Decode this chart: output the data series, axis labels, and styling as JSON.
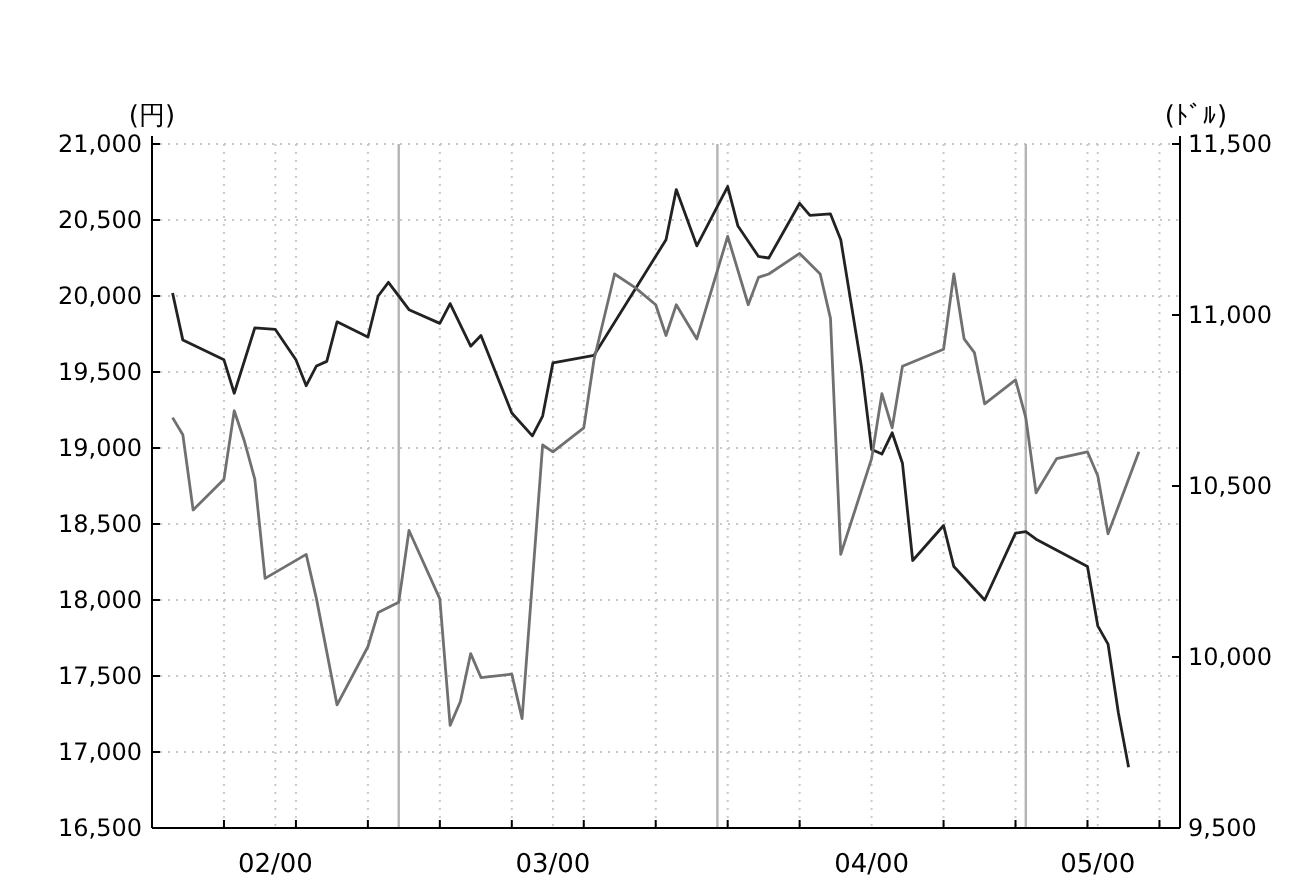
{
  "chart_data": {
    "type": "line",
    "ylabel": "(円)",
    "y2label": "(ﾄﾞﾙ)",
    "xlim": [
      "2000-02-06",
      "2000-05-16"
    ],
    "xticks": [
      {
        "value": "2000-02-13",
        "label": null
      },
      {
        "value": "2000-02-18",
        "label": "02/00"
      },
      {
        "value": "2000-02-20",
        "label": null
      },
      {
        "value": "2000-02-27",
        "label": null
      },
      {
        "value": "2000-03-05",
        "label": null
      },
      {
        "value": "2000-03-12",
        "label": null
      },
      {
        "value": "2000-03-16",
        "label": "03/00"
      },
      {
        "value": "2000-03-19",
        "label": null
      },
      {
        "value": "2000-03-26",
        "label": null
      },
      {
        "value": "2000-04-02",
        "label": null
      },
      {
        "value": "2000-04-09",
        "label": null
      },
      {
        "value": "2000-04-16",
        "label": "04/00"
      },
      {
        "value": "2000-04-23",
        "label": null
      },
      {
        "value": "2000-04-30",
        "label": null
      },
      {
        "value": "2000-05-07",
        "label": null
      },
      {
        "value": "2000-05-08",
        "label": "05/00"
      },
      {
        "value": "2000-05-14",
        "label": null
      }
    ],
    "ylim": [
      16500,
      21000
    ],
    "yticks": [
      {
        "value": 16500,
        "label": "16,500"
      },
      {
        "value": 17000,
        "label": "17,000"
      },
      {
        "value": 17500,
        "label": "17,500"
      },
      {
        "value": 18000,
        "label": "18,000"
      },
      {
        "value": 18500,
        "label": "18,500"
      },
      {
        "value": 19000,
        "label": "19,000"
      },
      {
        "value": 19500,
        "label": "19,500"
      },
      {
        "value": 20000,
        "label": "20,000"
      },
      {
        "value": 20500,
        "label": "20,500"
      },
      {
        "value": 21000,
        "label": "21,000"
      }
    ],
    "y2lim": [
      9500,
      11500
    ],
    "y2ticks": [
      {
        "value": 9500,
        "label": "9,500"
      },
      {
        "value": 10000,
        "label": "10,000"
      },
      {
        "value": 10500,
        "label": "10,500"
      },
      {
        "value": 11000,
        "label": "11,000"
      },
      {
        "value": 11500,
        "label": "11,500"
      }
    ],
    "grid": true,
    "line_style": "solid",
    "ref_lines": [
      {
        "axis": "x",
        "value": "2000-03-01",
        "color": "#b4b4b4"
      },
      {
        "axis": "x",
        "value": "2000-04-01",
        "color": "#b4b4b4"
      },
      {
        "axis": "x",
        "value": "2000-05-01",
        "color": "#b4b4b4"
      }
    ],
    "series": [
      {
        "color": "#222222",
        "x": [
          "2000-02-08",
          "2000-02-09",
          "2000-02-13",
          "2000-02-14",
          "2000-02-16",
          "2000-02-18",
          "2000-02-20",
          "2000-02-21",
          "2000-02-22",
          "2000-02-23",
          "2000-02-24",
          "2000-02-27",
          "2000-02-28",
          "2000-02-29",
          "2000-03-02",
          "2000-03-05",
          "2000-03-06",
          "2000-03-08",
          "2000-03-09",
          "2000-03-12",
          "2000-03-14",
          "2000-03-15",
          "2000-03-16",
          "2000-03-20",
          "2000-03-27",
          "2000-03-28",
          "2000-03-30",
          "2000-04-02",
          "2000-04-03",
          "2000-04-05",
          "2000-04-06",
          "2000-04-09",
          "2000-04-10",
          "2000-04-12",
          "2000-04-13",
          "2000-04-15",
          "2000-04-16",
          "2000-04-17",
          "2000-04-18",
          "2000-04-19",
          "2000-04-20",
          "2000-04-23",
          "2000-04-24",
          "2000-04-27",
          "2000-04-30",
          "2000-05-01",
          "2000-05-02",
          "2000-05-07",
          "2000-05-08",
          "2000-05-09",
          "2000-05-10",
          "2000-05-11"
        ],
        "values": [
          20020,
          19710,
          19580,
          19360,
          19790,
          19780,
          19580,
          19410,
          19540,
          19570,
          19830,
          19730,
          20000,
          20090,
          19910,
          19820,
          19950,
          19670,
          19740,
          19230,
          19080,
          19210,
          19560,
          19610,
          20370,
          20700,
          20330,
          20720,
          20460,
          20260,
          20250,
          20610,
          20530,
          20540,
          20370,
          19540,
          18990,
          18960,
          19100,
          18900,
          18260,
          18490,
          18220,
          18000,
          18440,
          18450,
          18400,
          18220,
          17830,
          17710,
          17260,
          16900
        ]
      },
      {
        "color": "#707070",
        "axis": "y2",
        "x": [
          "2000-02-08",
          "2000-02-09",
          "2000-02-10",
          "2000-02-13",
          "2000-02-14",
          "2000-02-15",
          "2000-02-16",
          "2000-02-17",
          "2000-02-21",
          "2000-02-22",
          "2000-02-24",
          "2000-02-27",
          "2000-02-28",
          "2000-03-01",
          "2000-03-02",
          "2000-03-05",
          "2000-03-06",
          "2000-03-07",
          "2000-03-08",
          "2000-03-09",
          "2000-03-12",
          "2000-03-13",
          "2000-03-15",
          "2000-03-16",
          "2000-03-19",
          "2000-03-20",
          "2000-03-22",
          "2000-03-24",
          "2000-03-26",
          "2000-03-27",
          "2000-03-28",
          "2000-03-30",
          "2000-04-02",
          "2000-04-04",
          "2000-04-05",
          "2000-04-06",
          "2000-04-09",
          "2000-04-11",
          "2000-04-12",
          "2000-04-13",
          "2000-04-16",
          "2000-04-17",
          "2000-04-18",
          "2000-04-19",
          "2000-04-23",
          "2000-04-24",
          "2000-04-25",
          "2000-04-26",
          "2000-04-27",
          "2000-04-30",
          "2000-05-01",
          "2000-05-02",
          "2000-05-04",
          "2000-05-07",
          "2000-05-08",
          "2000-05-09",
          "2000-05-12"
        ],
        "values": [
          10700,
          10650,
          10430,
          10520,
          10720,
          10630,
          10520,
          10230,
          10300,
          10170,
          9860,
          10030,
          10130,
          10160,
          10370,
          10170,
          9800,
          9870,
          10010,
          9940,
          9950,
          9820,
          10620,
          10600,
          10670,
          10870,
          11120,
          11080,
          11030,
          10940,
          11030,
          10930,
          11230,
          11030,
          11110,
          11120,
          11180,
          11120,
          10990,
          10300,
          10580,
          10770,
          10670,
          10850,
          10900,
          11120,
          10930,
          10890,
          10740,
          10810,
          10700,
          10480,
          10580,
          10600,
          10530,
          10360,
          10600
        ]
      }
    ]
  }
}
